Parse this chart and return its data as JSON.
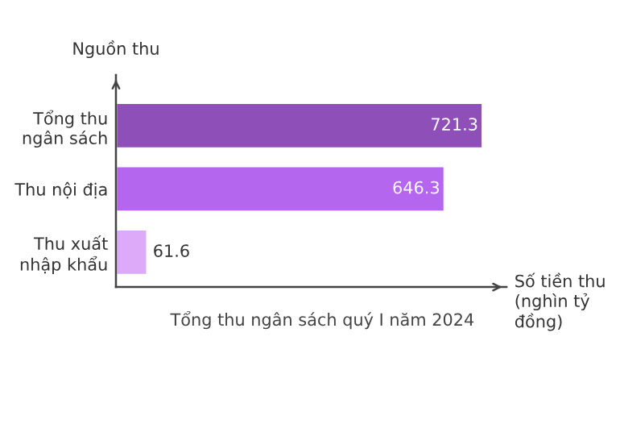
{
  "chart_data": {
    "type": "bar",
    "orientation": "horizontal",
    "title": "Tổng thu ngân sách quý I năm 2024",
    "xlabel": "Số tiền thu\n(nghìn tỷ\nđồng)",
    "ylabel": "Nguồn thu",
    "categories": [
      "Tổng thu\nngân sách",
      "Thu nội địa",
      "Thu xuất\nnhập khẩu"
    ],
    "values": [
      721.3,
      646.3,
      61.6
    ],
    "colors": [
      "#8e4fb9",
      "#b466ee",
      "#dcaaf8"
    ],
    "data_labels": true,
    "grid": false,
    "legend": false
  }
}
